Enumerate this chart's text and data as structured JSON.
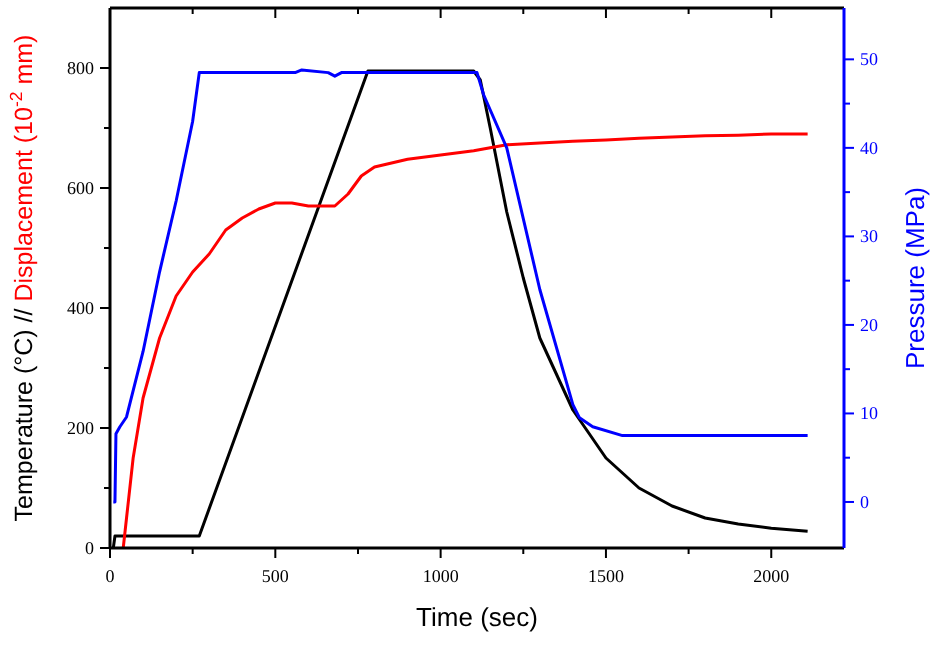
{
  "chart_data": {
    "type": "line",
    "xlabel": "Time (sec)",
    "ylabel": "Temperature (°C) // Displacement (10$^{-2}$ mm)",
    "y2label": "Pressure (MPa)",
    "xlim": [
      0,
      2220
    ],
    "xticks": [
      0,
      {
        "value": 250,
        "label": null
      },
      500,
      {
        "value": 750,
        "label": null
      },
      1000,
      {
        "value": 1250,
        "label": null
      },
      1500,
      {
        "value": 1750,
        "label": null
      },
      2000
    ],
    "ylim": [
      0,
      900
    ],
    "yticks": [
      0,
      {
        "value": 100,
        "label": null
      },
      200,
      {
        "value": 300,
        "label": null
      },
      400,
      {
        "value": 500,
        "label": null
      },
      600,
      {
        "value": 700,
        "label": null
      },
      800
    ],
    "y2lim": [
      -5.2,
      55.8
    ],
    "y2ticks": [
      0,
      {
        "value": 5,
        "label": null
      },
      10,
      {
        "value": 15,
        "label": null
      },
      20,
      {
        "value": 25,
        "label": null
      },
      30,
      {
        "value": 35,
        "label": null
      },
      40,
      {
        "value": 45,
        "label": null
      },
      50
    ],
    "grid": false,
    "marker": "none",
    "line_style": "solid",
    "series": [
      {
        "color": "#000000",
        "x": [
          10,
          15,
          270,
          780,
          1100,
          1120,
          1150,
          1200,
          1250,
          1300,
          1400,
          1500,
          1600,
          1700,
          1800,
          1900,
          2000,
          2110
        ],
        "values": [
          0,
          20,
          20,
          795,
          795,
          780,
          700,
          560,
          450,
          350,
          230,
          150,
          100,
          70,
          50,
          40,
          33,
          28
        ]
      },
      {
        "color": "#ff0000",
        "x": [
          40,
          50,
          70,
          100,
          150,
          200,
          250,
          300,
          350,
          400,
          450,
          500,
          550,
          600,
          680,
          720,
          760,
          800,
          900,
          1000,
          1100,
          1200,
          1300,
          1400,
          1500,
          1600,
          1700,
          1800,
          1900,
          2000,
          2110
        ],
        "values": [
          0,
          50,
          150,
          250,
          350,
          420,
          460,
          490,
          530,
          550,
          565,
          575,
          575,
          570,
          570,
          590,
          620,
          635,
          648,
          655,
          662,
          672,
          675,
          678,
          680,
          683,
          685,
          687,
          688,
          690,
          690
        ]
      },
      {
        "color": "#0000ff",
        "axis": "y2",
        "x": [
          10,
          15,
          18,
          30,
          50,
          100,
          150,
          200,
          250,
          270,
          560,
          580,
          660,
          680,
          700,
          1090,
          1110,
          1130,
          1200,
          1300,
          1400,
          1420,
          1460,
          1550,
          2110
        ],
        "values": [
          0,
          0,
          7.7,
          8.5,
          9.6,
          17,
          26,
          34,
          43,
          48.5,
          48.5,
          48.8,
          48.5,
          48.1,
          48.5,
          48.5,
          48.5,
          46,
          40,
          24,
          11,
          9.5,
          8.5,
          7.5,
          7.5
        ]
      }
    ]
  }
}
